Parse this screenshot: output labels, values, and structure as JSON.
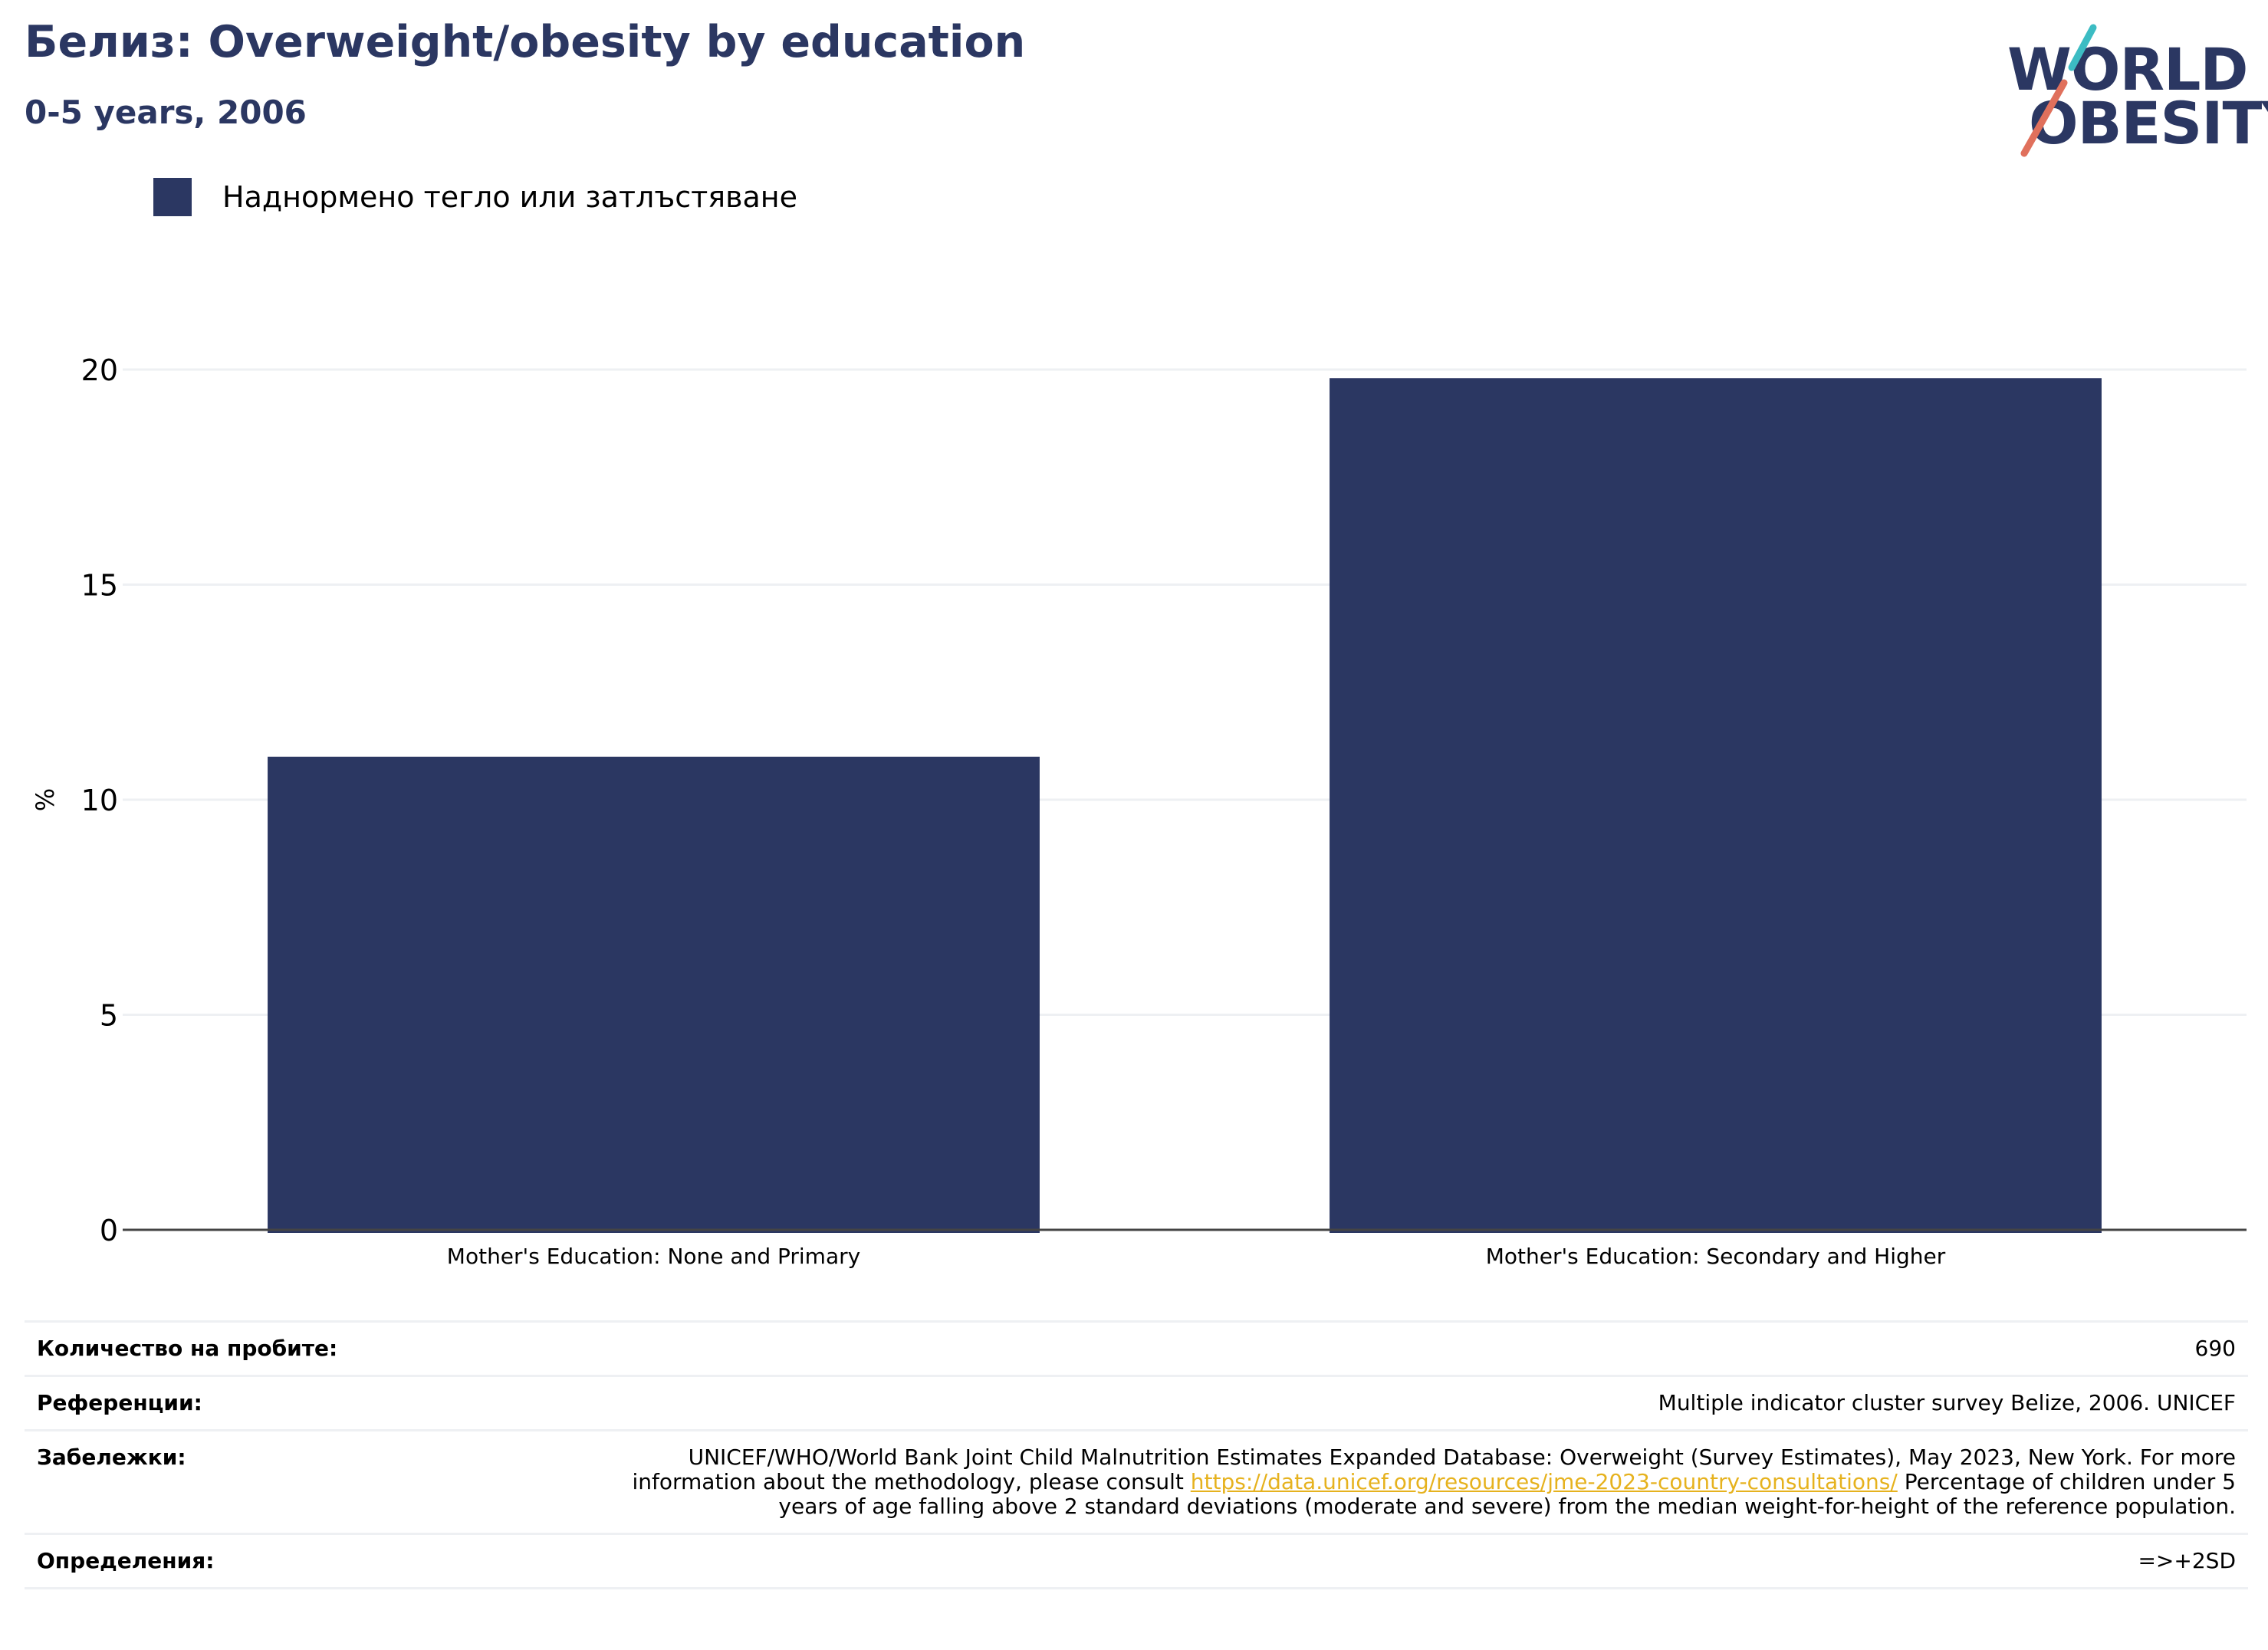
{
  "header": {
    "title": "Белиз: Overweight/obesity by education",
    "subtitle": "0-5 years, 2006"
  },
  "logo": {
    "line1": "WORLD",
    "line2": "OBESITY",
    "accent_teal": "#3cbcc3",
    "accent_coral": "#e0705c"
  },
  "legend": {
    "label": "Наднормено тегло или затлъстяване",
    "color": "#2b3762"
  },
  "chart_data": {
    "type": "bar",
    "categories": [
      "Mother's Education: None and Primary",
      "Mother's Education: Secondary and Higher"
    ],
    "series": [
      {
        "name": "Наднормено тегло или затлъстяване",
        "values": [
          11.0,
          19.8
        ],
        "color": "#2b3762"
      }
    ],
    "ylabel": "%",
    "ylim": [
      0,
      20
    ],
    "yticks": [
      0,
      5,
      10,
      15,
      20
    ],
    "grid": true,
    "legend_position": "top-left"
  },
  "info": {
    "sample_label": "Количество на пробите:",
    "sample_value": "690",
    "references_label": "Референции:",
    "references_value": "Multiple indicator cluster survey Belize, 2006. UNICEF",
    "notes_label": "Забележки:",
    "notes_before": "UNICEF/WHO/World Bank Joint Child Malnutrition Estimates Expanded Database: Overweight (Survey Estimates), May 2023, New York. For more information about the methodology, please consult ",
    "notes_link": "https://data.unicef.org/resources/jme-2023-country-consultations/",
    "notes_after": " Percentage of children under 5 years of age falling above 2 standard deviations (moderate and severe) from the median weight-for-height of the reference population.",
    "definitions_label": "Определения:",
    "definitions_value": "=>+2SD"
  }
}
